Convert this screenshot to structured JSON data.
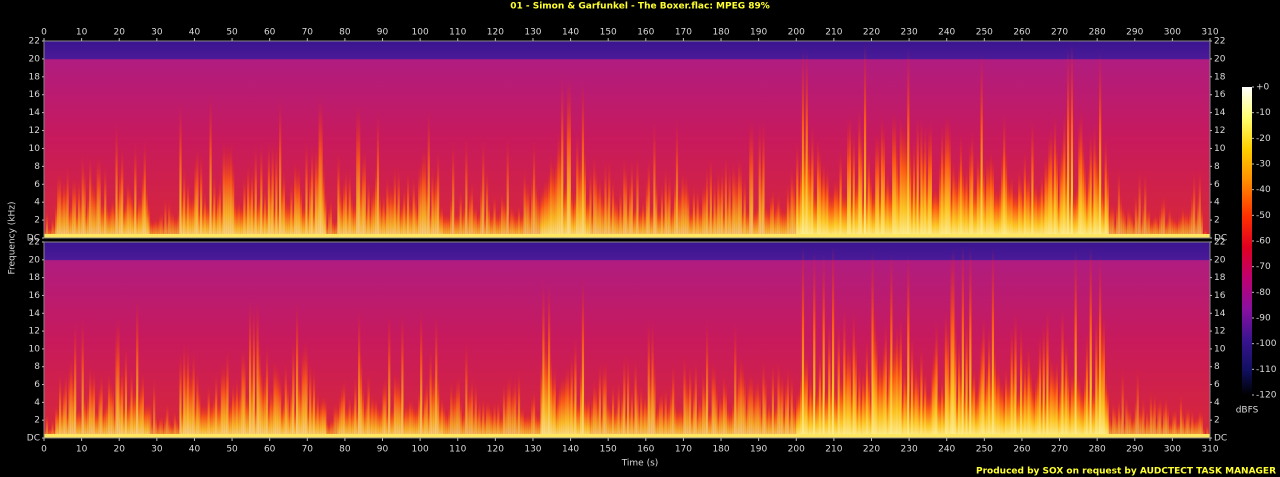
{
  "chart_data": {
    "type": "spectrogram",
    "title": "01 - Simon & Garfunkel - The Boxer.flac: MPEG 89%",
    "x_label": "Time (s)",
    "y_label": "Frequency (kHz)",
    "xlim": [
      0,
      310
    ],
    "xticks": [
      0,
      10,
      20,
      30,
      40,
      50,
      60,
      70,
      80,
      90,
      100,
      110,
      120,
      130,
      140,
      150,
      160,
      170,
      180,
      190,
      200,
      210,
      220,
      230,
      240,
      250,
      260,
      270,
      280,
      290,
      300,
      310
    ],
    "ylim": [
      0,
      22
    ],
    "yticks": [
      {
        "value": 0,
        "label": "DC"
      },
      2,
      4,
      6,
      8,
      10,
      12,
      14,
      16,
      18,
      20,
      22
    ],
    "colorbar": {
      "label": "dBFS",
      "lim": [
        -120,
        0
      ],
      "ticks": [
        {
          "value": 0,
          "label": "+0"
        },
        -10,
        -20,
        -30,
        -40,
        -50,
        -60,
        -70,
        -80,
        -90,
        -100,
        -110,
        -120
      ]
    },
    "footer": "Produced by SOX on request by AUDCTECT TASK MANAGER"
  }
}
